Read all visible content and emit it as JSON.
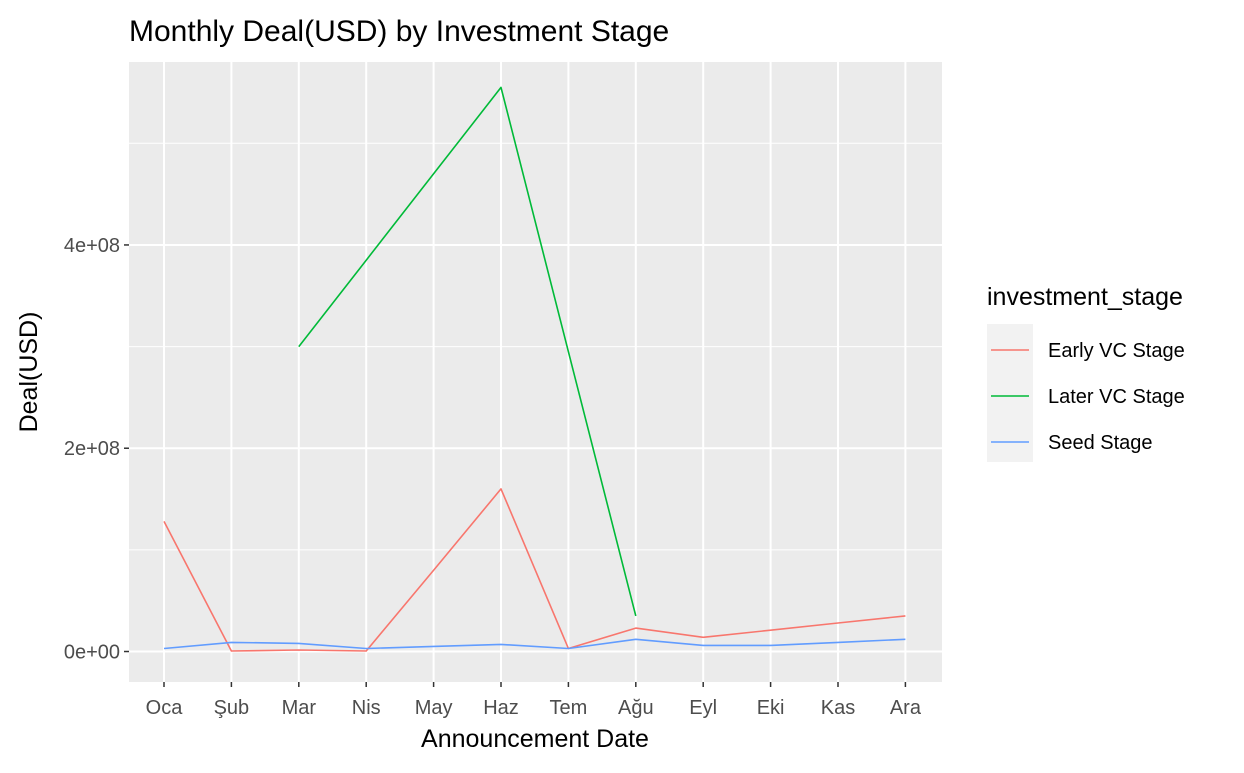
{
  "chart_data": {
    "type": "line",
    "title": "Monthly Deal(USD) by Investment Stage",
    "xlabel": "Announcement Date",
    "ylabel": "Deal(USD)",
    "categories": [
      "Oca",
      "Şub",
      "Mar",
      "Nis",
      "May",
      "Haz",
      "Tem",
      "Ağu",
      "Eyl",
      "Eki",
      "Kas",
      "Ara"
    ],
    "y_ticks": [
      0,
      200000000,
      400000000
    ],
    "y_tick_labels": [
      "0e+00",
      "2e+08",
      "4e+08"
    ],
    "ylim": [
      -30000000,
      580000000
    ],
    "grid": true,
    "legend": {
      "title": "investment_stage",
      "position": "right"
    },
    "series": [
      {
        "name": "Early VC Stage",
        "color": "#F8766D",
        "values": [
          128000000,
          500000,
          1500000,
          500000,
          80000000,
          160000000,
          3000000,
          23000000,
          14000000,
          21000000,
          28000000,
          35000000
        ]
      },
      {
        "name": "Later VC Stage",
        "color": "#00BA38",
        "values": [
          null,
          null,
          300000000,
          385000000,
          470000000,
          555000000,
          295000000,
          35000000,
          null,
          null,
          null,
          null
        ]
      },
      {
        "name": "Seed Stage",
        "color": "#619CFF",
        "values": [
          3000000,
          9000000,
          8000000,
          3000000,
          5000000,
          7000000,
          3000000,
          12000000,
          6000000,
          6000000,
          9000000,
          12000000
        ]
      }
    ]
  }
}
